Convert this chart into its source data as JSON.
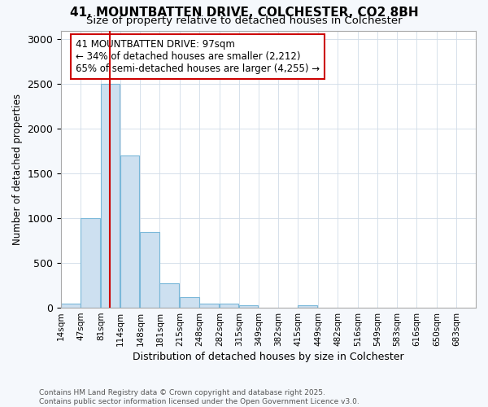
{
  "title_line1": "41, MOUNTBATTEN DRIVE, COLCHESTER, CO2 8BH",
  "title_line2": "Size of property relative to detached houses in Colchester",
  "xlabel": "Distribution of detached houses by size in Colchester",
  "ylabel": "Number of detached properties",
  "footer_line1": "Contains HM Land Registry data © Crown copyright and database right 2025.",
  "footer_line2": "Contains public sector information licensed under the Open Government Licence v3.0.",
  "annotation_line1": "41 MOUNTBATTEN DRIVE: 97sqm",
  "annotation_line2": "← 34% of detached houses are smaller (2,212)",
  "annotation_line3": "65% of semi-detached houses are larger (4,255) →",
  "bins": [
    14,
    47,
    81,
    114,
    148,
    181,
    215,
    248,
    282,
    315,
    349,
    382,
    415,
    449,
    482,
    516,
    549,
    583,
    616,
    650,
    683
  ],
  "bar_heights": [
    50,
    1000,
    2500,
    1700,
    850,
    275,
    120,
    50,
    50,
    25,
    0,
    0,
    25,
    0,
    0,
    0,
    0,
    0,
    0,
    0,
    0
  ],
  "bar_color": "#cde0f0",
  "bar_edge_color": "#7ab8d9",
  "vline_x": 97,
  "vline_color": "#cc0000",
  "annotation_box_edge_color": "#cc0000",
  "ylim": [
    0,
    3100
  ],
  "tick_labels": [
    "14sqm",
    "47sqm",
    "81sqm",
    "114sqm",
    "148sqm",
    "181sqm",
    "215sqm",
    "248sqm",
    "282sqm",
    "315sqm",
    "349sqm",
    "382sqm",
    "415sqm",
    "449sqm",
    "482sqm",
    "516sqm",
    "549sqm",
    "583sqm",
    "616sqm",
    "650sqm",
    "683sqm"
  ],
  "background_color": "#f5f8fc",
  "plot_background_color": "#ffffff",
  "grid_color": "#d0dce8"
}
